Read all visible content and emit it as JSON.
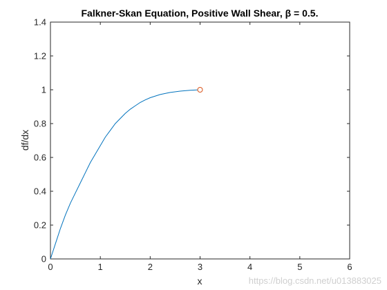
{
  "chart_data": {
    "type": "line",
    "title": "Falkner-Skan Equation, Positive Wall Shear, β = 0.5.",
    "xlabel": "x",
    "ylabel": "df/dx",
    "xlim": [
      0,
      6
    ],
    "ylim": [
      0,
      1.4
    ],
    "xticks": [
      "0",
      "1",
      "2",
      "3",
      "4",
      "5",
      "6"
    ],
    "yticks": [
      "0",
      "0.2",
      "0.4",
      "0.6",
      "0.8",
      "1",
      "1.2",
      "1.4"
    ],
    "grid": false,
    "series": [
      {
        "color": "#0072BD",
        "x": [
          0,
          0.1,
          0.2,
          0.3,
          0.4,
          0.5,
          0.6,
          0.7,
          0.8,
          0.9,
          1.0,
          1.1,
          1.2,
          1.3,
          1.4,
          1.5,
          1.6,
          1.7,
          1.8,
          1.9,
          2.0,
          2.2,
          2.4,
          2.6,
          2.8,
          3.0
        ],
        "y": [
          0,
          0.09,
          0.18,
          0.26,
          0.33,
          0.39,
          0.45,
          0.51,
          0.57,
          0.62,
          0.67,
          0.72,
          0.76,
          0.8,
          0.83,
          0.86,
          0.885,
          0.905,
          0.925,
          0.94,
          0.953,
          0.972,
          0.984,
          0.992,
          0.997,
          1.0
        ]
      }
    ],
    "marker": {
      "x": 3.0,
      "y": 1.0,
      "color": "#D95319",
      "shape": "circle"
    }
  },
  "watermark": "https://blog.csdn.net/u013883025"
}
